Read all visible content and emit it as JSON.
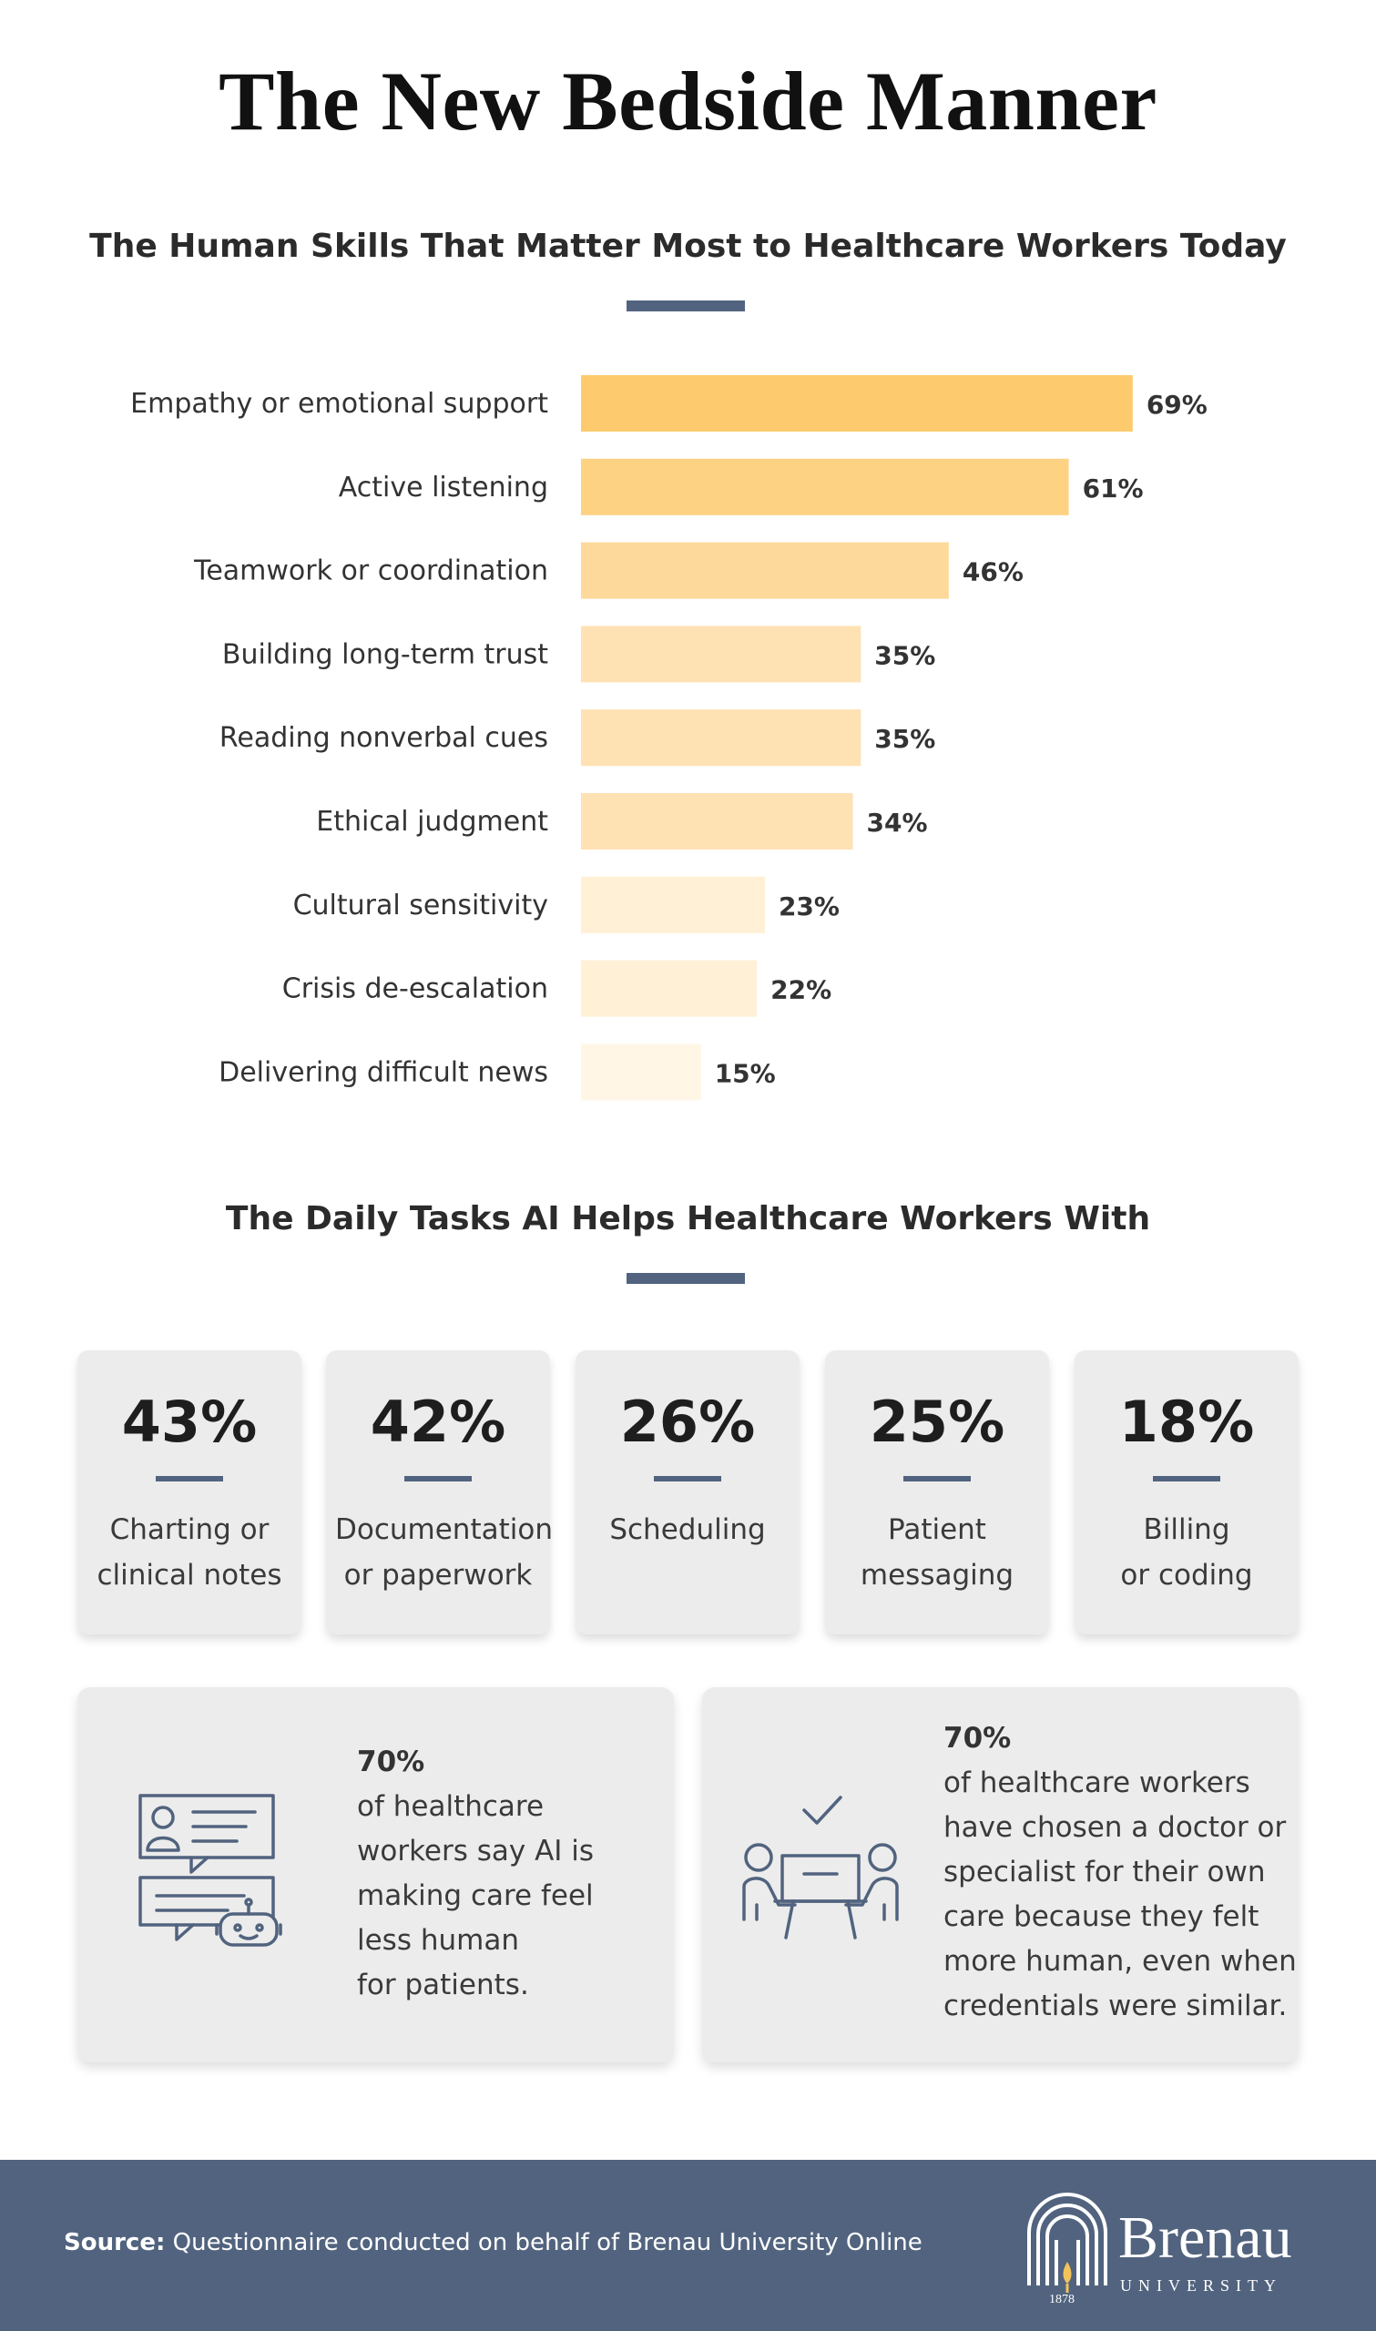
{
  "title": "The New Bedside Manner",
  "skills_section": {
    "title": "The Human Skills That Matter Most to Healthcare Workers Today"
  },
  "chart_data": {
    "type": "bar",
    "orientation": "horizontal",
    "title": "The Human Skills That Matter Most to Healthcare Workers Today",
    "categories": [
      "Empathy or emotional support",
      "Active listening",
      "Teamwork or coordination",
      "Building long-term trust",
      "Reading nonverbal cues",
      "Ethical judgment",
      "Cultural sensitivity",
      "Crisis de-escalation",
      "Delivering difficult news"
    ],
    "values": [
      69,
      61,
      46,
      35,
      35,
      34,
      23,
      22,
      15
    ],
    "value_labels": [
      "69%",
      "61%",
      "46%",
      "35%",
      "35%",
      "34%",
      "23%",
      "22%",
      "15%"
    ],
    "bar_colors": [
      "#fdcb6e",
      "#fdd283",
      "#fdd99c",
      "#fee2b4",
      "#fee2b4",
      "#fee2b4",
      "#fff0d6",
      "#fff0d6",
      "#fff6e6"
    ],
    "xlim": [
      0,
      100
    ],
    "grid": false,
    "legend": "none"
  },
  "tasks_section": {
    "title": "The Daily Tasks AI Helps Healthcare Workers With",
    "cards": [
      {
        "pct": "43%",
        "label": "Charting or\nclinical notes"
      },
      {
        "pct": "42%",
        "label": "Documentation\nor paperwork"
      },
      {
        "pct": "26%",
        "label": "Scheduling"
      },
      {
        "pct": "25%",
        "label": "Patient\nmessaging"
      },
      {
        "pct": "18%",
        "label": "Billing\nor coding"
      }
    ]
  },
  "stats": [
    {
      "pct": "70%",
      "text": "of healthcare\nworkers say AI is\nmaking care feel\nless human\nfor patients.",
      "icon": "chat-robot-icon"
    },
    {
      "pct": "70%",
      "text": "of healthcare workers\nhave chosen a doctor or\nspecialist for their own\ncare because they felt\nmore human, even when\ncredentials were similar.",
      "icon": "doctor-patient-consultation-icon"
    }
  ],
  "footer": {
    "source_label": "Source:",
    "source_text": "Questionnaire conducted on behalf of Brenau University Online",
    "logo_name": "Brenau",
    "logo_sub": "UNIVERSITY",
    "logo_year": "1878"
  },
  "colors": {
    "accent": "#51637e",
    "card_bg": "#ececec",
    "bar_top": "#fdcb6e"
  }
}
